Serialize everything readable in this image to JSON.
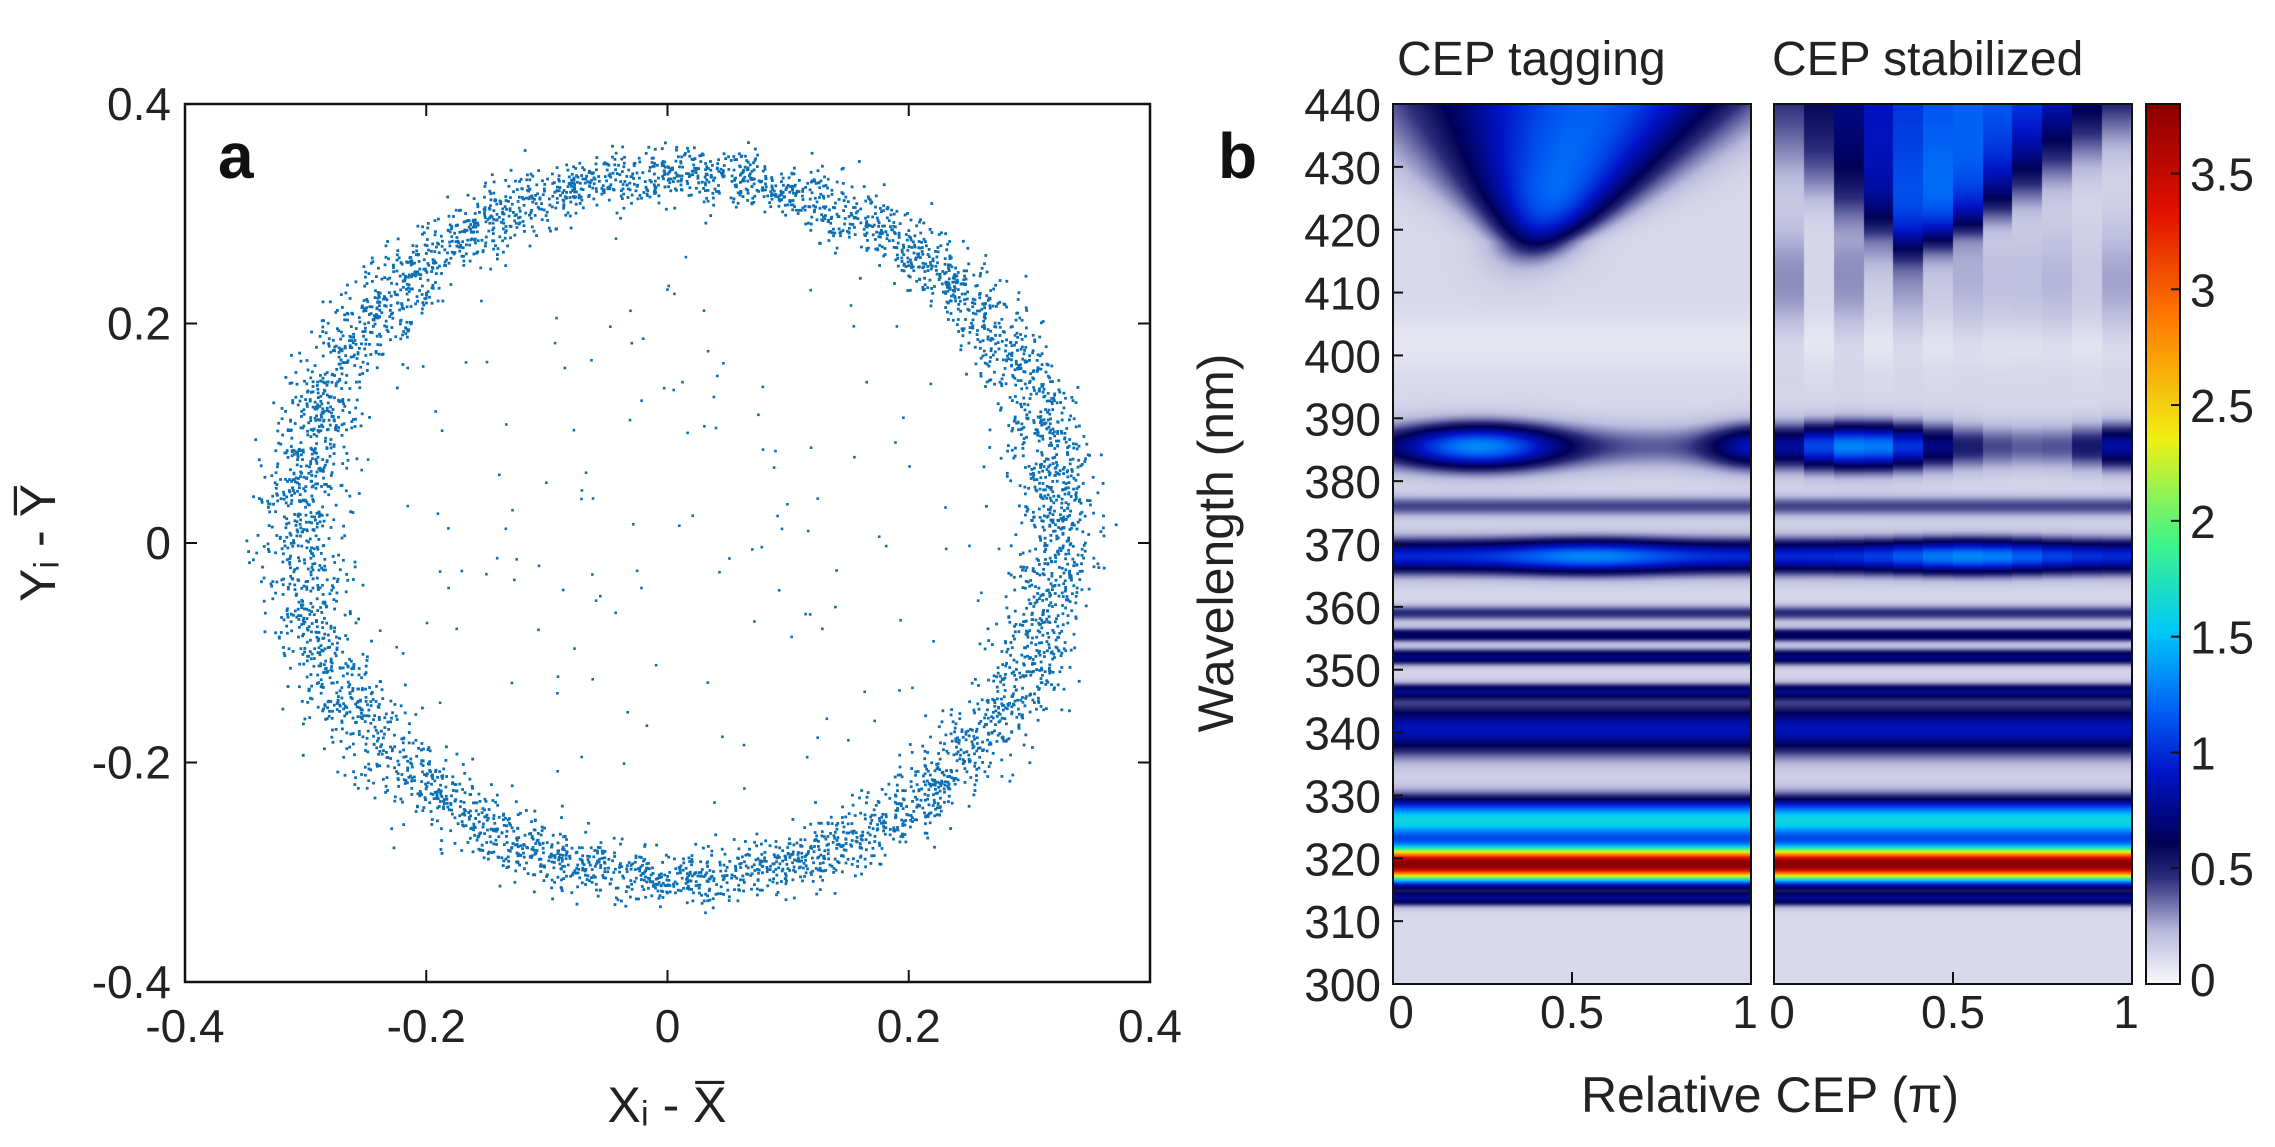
{
  "panel_a": {
    "letter": "a",
    "x_label": "Xᵢ - X̅",
    "y_label": "Yᵢ - Y̅",
    "marker_color": "#0b6fb4"
  },
  "panel_b": {
    "letter": "b",
    "left_title": "CEP tagging",
    "right_title": "CEP stabilized",
    "x_label": "Relative CEP (π)",
    "y_label": "Wavelength (nm)"
  },
  "chart_data": [
    {
      "type": "scatter",
      "id": "a",
      "title": "",
      "xlabel": "Xi - X̄",
      "ylabel": "Yi - Ȳ",
      "xlim": [
        -0.4,
        0.4
      ],
      "ylim": [
        -0.4,
        0.4
      ],
      "x_ticks": [
        -0.4,
        -0.2,
        0,
        0.2,
        0.4
      ],
      "y_ticks": [
        -0.4,
        -0.2,
        0,
        0.2,
        0.4
      ],
      "x_tick_labels": [
        "-0.4",
        "-0.2",
        "0",
        "0.2",
        "0.4"
      ],
      "y_tick_labels": [
        "-0.4",
        "-0.2",
        "0",
        "0.2",
        "0.4"
      ],
      "ring": {
        "center_x": 0.01,
        "center_y": 0.015,
        "radius_x": 0.315,
        "radius_y": 0.32,
        "width": 0.03,
        "points": 5200
      },
      "interior_points": 140,
      "marker_color": "#0b6fb4"
    },
    {
      "type": "heatmap",
      "id": "b-left",
      "title": "CEP tagging",
      "xlabel": "Relative CEP (π)",
      "ylabel": "Wavelength (nm)",
      "xlim": [
        0,
        1
      ],
      "ylim": [
        300,
        440
      ],
      "x_ticks": [
        0,
        0.5,
        1
      ],
      "x_tick_labels": [
        "0",
        "0.5",
        "1"
      ],
      "y_ticks": [
        300,
        310,
        320,
        330,
        340,
        350,
        360,
        370,
        380,
        390,
        400,
        410,
        420,
        430,
        440
      ],
      "y_tick_labels": [
        "300",
        "310",
        "320",
        "330",
        "340",
        "350",
        "360",
        "370",
        "380",
        "390",
        "400",
        "410",
        "420",
        "430",
        "440"
      ],
      "smooth": true,
      "bins": 120
    },
    {
      "type": "heatmap",
      "id": "b-right",
      "title": "CEP stabilized",
      "xlabel": "Relative CEP (π)",
      "xlim": [
        0,
        1
      ],
      "ylim": [
        300,
        440
      ],
      "x_ticks": [
        0,
        0.5,
        1
      ],
      "x_tick_labels": [
        "0",
        "0.5",
        "1"
      ],
      "smooth": false,
      "bins": 12
    },
    {
      "type": "colorbar",
      "id": "b-colorbar",
      "colormap": "white-navy-blue-cyan-yellow-red",
      "range": [
        0,
        3.8
      ],
      "ticks": [
        0,
        0.5,
        1,
        1.5,
        2,
        2.5,
        3,
        3.5
      ],
      "tick_labels": [
        "0",
        "0.5",
        "1",
        "1.5",
        "2",
        "2.5",
        "3",
        "3.5"
      ]
    }
  ]
}
